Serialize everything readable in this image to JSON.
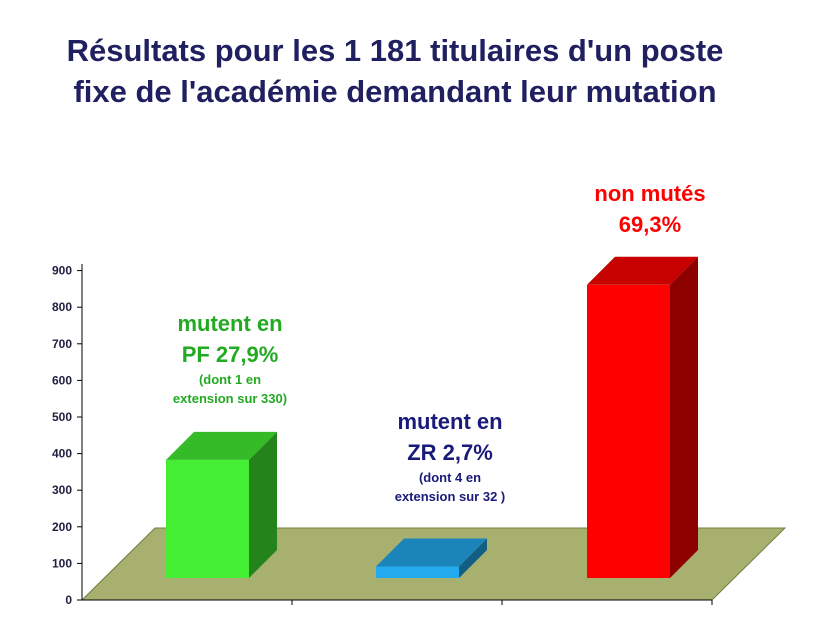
{
  "title": "Résultats pour les 1 181 titulaires d'un poste fixe de l'académie demandant leur mutation",
  "chart_data": {
    "type": "bar",
    "categories": [
      "PF",
      "ZR",
      "non mutés"
    ],
    "values": [
      330,
      32,
      819
    ],
    "ylim": [
      0,
      900
    ],
    "yticks": [
      "0",
      "100",
      "200",
      "300",
      "400",
      "500",
      "600",
      "700",
      "800",
      "900"
    ],
    "grid": false,
    "colors": [
      "#44ee33",
      "#22aaee",
      "#ff0000"
    ],
    "annotations": [
      {
        "line1": "mutent en",
        "line2": "PF  27,9%",
        "note1": "(dont 1 en",
        "note2": "extension sur 330)"
      },
      {
        "line1": "mutent en",
        "line2": "ZR  2,7%",
        "note1": "(dont 4 en",
        "note2": "extension sur 32 )"
      },
      {
        "line1": "non mutés",
        "line2": "69,3%"
      }
    ]
  }
}
